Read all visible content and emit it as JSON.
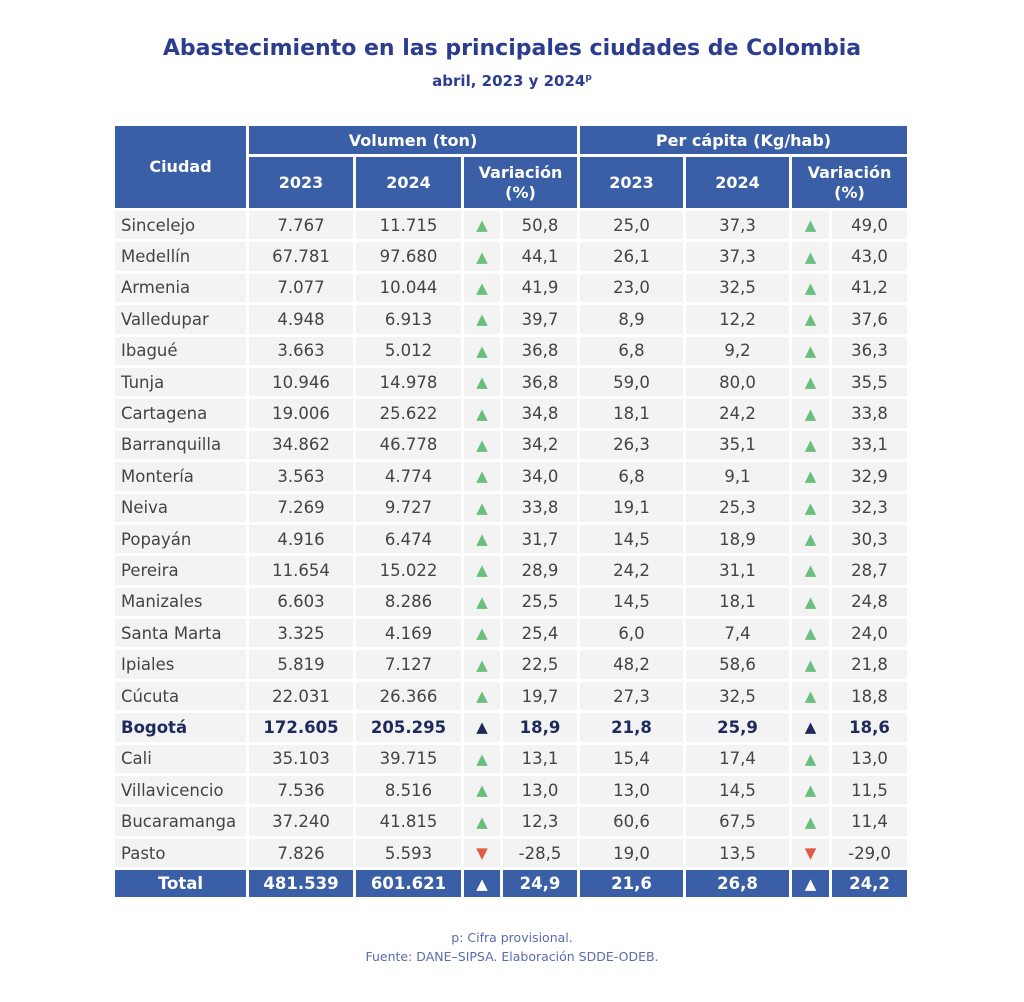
{
  "title": "Abastecimiento en las principales ciudades de Colombia",
  "subtitle": "abril, 2023 y 2024",
  "subtitle_sup": "p",
  "headers": {
    "city": "Ciudad",
    "volume_group": "Volumen (ton)",
    "percapita_group": "Per cápita (Kg/hab)",
    "y2023": "2023",
    "y2024": "2024",
    "variation": "Variación (%)"
  },
  "colors": {
    "header": "#3a5fa6",
    "up": "#6bbf7e",
    "down": "#e05a45",
    "title": "#2c3d8f"
  },
  "rows": [
    {
      "city": "Sincelejo",
      "v2023": "7.767",
      "v2024": "11.715",
      "vdir": "up",
      "vvar": "50,8",
      "p2023": "25,0",
      "p2024": "37,3",
      "pdir": "up",
      "pvar": "49,0"
    },
    {
      "city": "Medellín",
      "v2023": "67.781",
      "v2024": "97.680",
      "vdir": "up",
      "vvar": "44,1",
      "p2023": "26,1",
      "p2024": "37,3",
      "pdir": "up",
      "pvar": "43,0"
    },
    {
      "city": "Armenia",
      "v2023": "7.077",
      "v2024": "10.044",
      "vdir": "up",
      "vvar": "41,9",
      "p2023": "23,0",
      "p2024": "32,5",
      "pdir": "up",
      "pvar": "41,2"
    },
    {
      "city": "Valledupar",
      "v2023": "4.948",
      "v2024": "6.913",
      "vdir": "up",
      "vvar": "39,7",
      "p2023": "8,9",
      "p2024": "12,2",
      "pdir": "up",
      "pvar": "37,6"
    },
    {
      "city": "Ibagué",
      "v2023": "3.663",
      "v2024": "5.012",
      "vdir": "up",
      "vvar": "36,8",
      "p2023": "6,8",
      "p2024": "9,2",
      "pdir": "up",
      "pvar": "36,3"
    },
    {
      "city": "Tunja",
      "v2023": "10.946",
      "v2024": "14.978",
      "vdir": "up",
      "vvar": "36,8",
      "p2023": "59,0",
      "p2024": "80,0",
      "pdir": "up",
      "pvar": "35,5"
    },
    {
      "city": "Cartagena",
      "v2023": "19.006",
      "v2024": "25.622",
      "vdir": "up",
      "vvar": "34,8",
      "p2023": "18,1",
      "p2024": "24,2",
      "pdir": "up",
      "pvar": "33,8"
    },
    {
      "city": "Barranquilla",
      "v2023": "34.862",
      "v2024": "46.778",
      "vdir": "up",
      "vvar": "34,2",
      "p2023": "26,3",
      "p2024": "35,1",
      "pdir": "up",
      "pvar": "33,1"
    },
    {
      "city": "Montería",
      "v2023": "3.563",
      "v2024": "4.774",
      "vdir": "up",
      "vvar": "34,0",
      "p2023": "6,8",
      "p2024": "9,1",
      "pdir": "up",
      "pvar": "32,9"
    },
    {
      "city": "Neiva",
      "v2023": "7.269",
      "v2024": "9.727",
      "vdir": "up",
      "vvar": "33,8",
      "p2023": "19,1",
      "p2024": "25,3",
      "pdir": "up",
      "pvar": "32,3"
    },
    {
      "city": "Popayán",
      "v2023": "4.916",
      "v2024": "6.474",
      "vdir": "up",
      "vvar": "31,7",
      "p2023": "14,5",
      "p2024": "18,9",
      "pdir": "up",
      "pvar": "30,3"
    },
    {
      "city": "Pereira",
      "v2023": "11.654",
      "v2024": "15.022",
      "vdir": "up",
      "vvar": "28,9",
      "p2023": "24,2",
      "p2024": "31,1",
      "pdir": "up",
      "pvar": "28,7"
    },
    {
      "city": "Manizales",
      "v2023": "6.603",
      "v2024": "8.286",
      "vdir": "up",
      "vvar": "25,5",
      "p2023": "14,5",
      "p2024": "18,1",
      "pdir": "up",
      "pvar": "24,8"
    },
    {
      "city": "Santa Marta",
      "v2023": "3.325",
      "v2024": "4.169",
      "vdir": "up",
      "vvar": "25,4",
      "p2023": "6,0",
      "p2024": "7,4",
      "pdir": "up",
      "pvar": "24,0"
    },
    {
      "city": "Ipiales",
      "v2023": "5.819",
      "v2024": "7.127",
      "vdir": "up",
      "vvar": "22,5",
      "p2023": "48,2",
      "p2024": "58,6",
      "pdir": "up",
      "pvar": "21,8"
    },
    {
      "city": "Cúcuta",
      "v2023": "22.031",
      "v2024": "26.366",
      "vdir": "up",
      "vvar": "19,7",
      "p2023": "27,3",
      "p2024": "32,5",
      "pdir": "up",
      "pvar": "18,8"
    },
    {
      "city": "Bogotá",
      "bold": true,
      "v2023": "172.605",
      "v2024": "205.295",
      "vdir": "up",
      "vvar": "18,9",
      "p2023": "21,8",
      "p2024": "25,9",
      "pdir": "up",
      "pvar": "18,6"
    },
    {
      "city": "Cali",
      "v2023": "35.103",
      "v2024": "39.715",
      "vdir": "up",
      "vvar": "13,1",
      "p2023": "15,4",
      "p2024": "17,4",
      "pdir": "up",
      "pvar": "13,0"
    },
    {
      "city": "Villavicencio",
      "v2023": "7.536",
      "v2024": "8.516",
      "vdir": "up",
      "vvar": "13,0",
      "p2023": "13,0",
      "p2024": "14,5",
      "pdir": "up",
      "pvar": "11,5"
    },
    {
      "city": "Bucaramanga",
      "v2023": "37.240",
      "v2024": "41.815",
      "vdir": "up",
      "vvar": "12,3",
      "p2023": "60,6",
      "p2024": "67,5",
      "pdir": "up",
      "pvar": "11,4"
    },
    {
      "city": "Pasto",
      "v2023": "7.826",
      "v2024": "5.593",
      "vdir": "down",
      "vvar": "-28,5",
      "p2023": "19,0",
      "p2024": "13,5",
      "pdir": "down",
      "pvar": "-29,0"
    }
  ],
  "total": {
    "city": "Total",
    "v2023": "481.539",
    "v2024": "601.621",
    "vdir": "up",
    "vvar": "24,9",
    "p2023": "21,6",
    "p2024": "26,8",
    "pdir": "up",
    "pvar": "24,2"
  },
  "footnote": "p: Cifra provisional.",
  "source": "Fuente: DANE–SIPSA. Elaboración SDDE-ODEB."
}
